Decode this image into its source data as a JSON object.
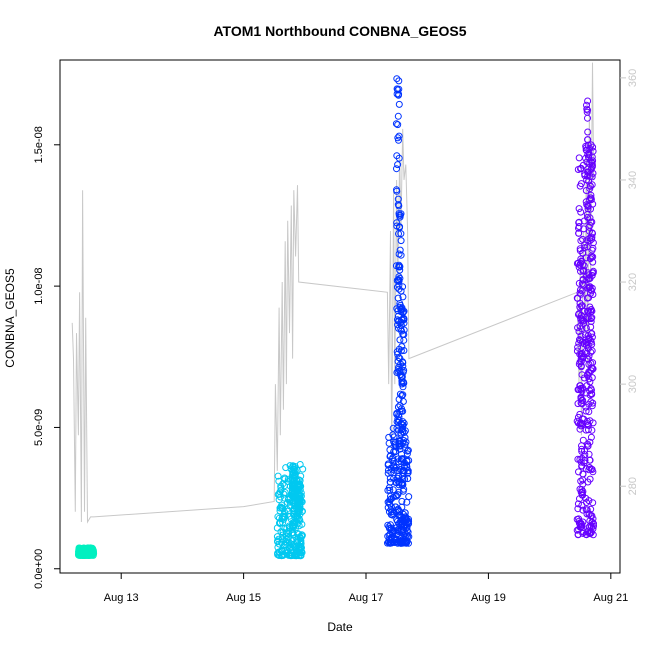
{
  "chart_data": {
    "type": "scatter",
    "title": "ATOM1 Northbound CONBNA_GEOS5",
    "xlabel": "Date",
    "ylabel": "CONBNA_GEOS5",
    "x_axis": {
      "range_days": [
        12.0,
        21.15
      ],
      "ticks": [
        {
          "value": 13,
          "label": "Aug 13"
        },
        {
          "value": 15,
          "label": "Aug 15"
        },
        {
          "value": 17,
          "label": "Aug 17"
        },
        {
          "value": 19,
          "label": "Aug 19"
        },
        {
          "value": 21,
          "label": "Aug 21"
        }
      ]
    },
    "y_axis": {
      "range": [
        -1.5e-10,
        1.8e-08
      ],
      "ticks": [
        {
          "value": 0,
          "label": "0.0e+00"
        },
        {
          "value": 5e-09,
          "label": "5.0e-09"
        },
        {
          "value": 1e-08,
          "label": "1.0e-08"
        },
        {
          "value": 1.5e-08,
          "label": "1.5e-08"
        }
      ]
    },
    "y2_axis": {
      "range": [
        263,
        363.5
      ],
      "color": "#c8c8c8",
      "ticks": [
        {
          "value": 280,
          "label": "280"
        },
        {
          "value": 300,
          "label": "300"
        },
        {
          "value": 320,
          "label": "320"
        },
        {
          "value": 340,
          "label": "340"
        },
        {
          "value": 360,
          "label": "360"
        }
      ]
    },
    "flights": [
      {
        "x_start": 12.3,
        "x_end": 12.55,
        "y_min": 4.7e-10,
        "y_max": 7.4e-10,
        "color": "#00f0c0",
        "bursts": []
      },
      {
        "x_start": 15.55,
        "x_end": 15.97,
        "y_min": 4.6e-10,
        "y_max": 3.7e-09,
        "color": "#00c8f0",
        "bursts": [
          [
            15.82,
            1.4e-09,
            3.7e-09
          ],
          [
            15.9,
            1.6e-09,
            3.2e-09
          ]
        ]
      },
      {
        "x_start": 17.35,
        "x_end": 17.7,
        "y_min": 9e-10,
        "y_max": 5e-09,
        "color": "#0033ff",
        "bursts": [
          [
            17.52,
            3e-09,
            1.74e-08
          ],
          [
            17.55,
            4e-09,
            1.3e-08
          ],
          [
            17.6,
            3e-09,
            1e-08
          ]
        ]
      },
      {
        "x_start": 20.45,
        "x_end": 20.72,
        "y_min": 1.2e-09,
        "y_max": 1.5e-08,
        "color": "#6600ff",
        "bursts": [
          [
            20.62,
            3e-09,
            1.66e-08
          ],
          [
            20.68,
            5e-09,
            1.52e-08
          ],
          [
            20.52,
            2e-09,
            1.2e-08
          ]
        ]
      }
    ],
    "secondary_series": {
      "color": "#c8c8c8",
      "points": [
        [
          12.2,
          312
        ],
        [
          12.22,
          305
        ],
        [
          12.25,
          275
        ],
        [
          12.27,
          310
        ],
        [
          12.3,
          290
        ],
        [
          12.32,
          318
        ],
        [
          12.35,
          273
        ],
        [
          12.37,
          338
        ],
        [
          12.4,
          275
        ],
        [
          12.42,
          313
        ],
        [
          12.45,
          273
        ],
        [
          12.5,
          274
        ],
        [
          12.55,
          274
        ],
        [
          15.0,
          276
        ],
        [
          15.5,
          277
        ],
        [
          15.52,
          300
        ],
        [
          15.55,
          283
        ],
        [
          15.58,
          315
        ],
        [
          15.6,
          290
        ],
        [
          15.63,
          320
        ],
        [
          15.65,
          295
        ],
        [
          15.68,
          328
        ],
        [
          15.7,
          300
        ],
        [
          15.72,
          332
        ],
        [
          15.75,
          310
        ],
        [
          15.78,
          335
        ],
        [
          15.8,
          305
        ],
        [
          15.82,
          338
        ],
        [
          15.85,
          325
        ],
        [
          15.88,
          339
        ],
        [
          15.9,
          320
        ],
        [
          17.35,
          318
        ],
        [
          17.37,
          300
        ],
        [
          17.4,
          330
        ],
        [
          17.42,
          285
        ],
        [
          17.45,
          338
        ],
        [
          17.47,
          300
        ],
        [
          17.5,
          340
        ],
        [
          17.52,
          320
        ],
        [
          17.55,
          345
        ],
        [
          17.57,
          330
        ],
        [
          17.6,
          350
        ],
        [
          17.62,
          340
        ],
        [
          17.65,
          343
        ],
        [
          17.68,
          330
        ],
        [
          17.7,
          305
        ],
        [
          20.45,
          318
        ],
        [
          20.48,
          300
        ],
        [
          20.5,
          325
        ],
        [
          20.52,
          290
        ],
        [
          20.55,
          330
        ],
        [
          20.58,
          310
        ],
        [
          20.6,
          345
        ],
        [
          20.62,
          300
        ],
        [
          20.65,
          355
        ],
        [
          20.67,
          320
        ],
        [
          20.7,
          363
        ],
        [
          20.72,
          340
        ]
      ]
    },
    "grid": false,
    "legend": "none"
  }
}
